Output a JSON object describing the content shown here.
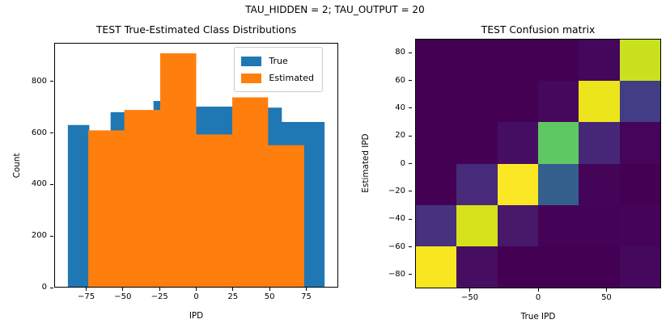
{
  "figure": {
    "suptitle": "TAU_HIDDEN = 2; TAU_OUTPUT = 20",
    "background_color": "#ffffff",
    "text_color": "#000000"
  },
  "chart_data": [
    {
      "id": "class-distributions-histogram",
      "type": "bar",
      "variant": "overlapping-step-histograms",
      "title": "TEST True-Estimated Class Distributions",
      "xlabel": "IPD",
      "ylabel": "Count",
      "xlim": [
        -96.8,
        96.8
      ],
      "ylim": [
        0,
        950
      ],
      "x_ticks": [
        -75,
        -50,
        -25,
        0,
        25,
        50,
        75
      ],
      "y_ticks": [
        0,
        200,
        400,
        600,
        800
      ],
      "grid": false,
      "legend": {
        "position": "upper right"
      },
      "series": [
        {
          "name": "True",
          "color": "#1f77b4",
          "bin_edges": [
            -88,
            -73.3,
            -58.7,
            -44,
            -29.3,
            -14.7,
            0,
            14.7,
            29.3,
            44,
            58.7,
            73.3,
            88
          ],
          "counts": [
            632,
            610,
            682,
            688,
            726,
            710,
            704,
            704,
            720,
            700,
            644,
            644
          ]
        },
        {
          "name": "Estimated",
          "color": "#ff7f0e",
          "bin_edges": [
            -74,
            -49.3,
            -24.7,
            0,
            24.7,
            49.3,
            74
          ],
          "counts": [
            611,
            691,
            912,
            595,
            740,
            553
          ]
        }
      ]
    },
    {
      "id": "confusion-matrix-heatmap",
      "type": "heatmap",
      "title": "TEST Confusion matrix",
      "xlabel": "True IPD",
      "ylabel": "Estimated IPD",
      "xlim": [
        -90,
        90
      ],
      "ylim": [
        -90,
        90
      ],
      "x_ticks": [
        -50,
        0,
        50
      ],
      "y_ticks": [
        80,
        60,
        40,
        20,
        0,
        -20,
        -40,
        -60,
        -80
      ],
      "colormap": "viridis",
      "n_rows": 6,
      "n_cols": 6,
      "row_order": "top-to-bottom, Estimated IPD from +90 to -90",
      "col_order": "left-to-right, True IPD from -90 to +90",
      "background_value_color": "#440154",
      "values_normalized": [
        [
          0,
          0,
          0,
          0,
          0.02,
          0.85
        ],
        [
          0,
          0,
          0,
          0.03,
          0.94,
          0.14
        ],
        [
          0,
          0,
          0.04,
          0.65,
          0.09,
          0.02
        ],
        [
          0,
          0.09,
          0.99,
          0.27,
          0.01,
          0
        ],
        [
          0.11,
          0.88,
          0.06,
          0.01,
          0.01,
          0.015
        ],
        [
          0.97,
          0.04,
          0,
          0,
          0,
          0.03
        ]
      ],
      "cell_colors": [
        [
          "#440154",
          "#440154",
          "#440154",
          "#440154",
          "#45075B",
          "#C9E11F"
        ],
        [
          "#440154",
          "#440154",
          "#440154",
          "#46085C",
          "#EDE51B",
          "#423D84"
        ],
        [
          "#440154",
          "#440154",
          "#460E63",
          "#5EC962",
          "#462777",
          "#45055A"
        ],
        [
          "#440154",
          "#472A7A",
          "#FBE723",
          "#345F8D",
          "#440458",
          "#440154"
        ],
        [
          "#46327E",
          "#D5E21B",
          "#48186A",
          "#440357",
          "#440357",
          "#45045A"
        ],
        [
          "#F8E621",
          "#470D60",
          "#440154",
          "#440154",
          "#440154",
          "#45085C"
        ]
      ]
    }
  ]
}
